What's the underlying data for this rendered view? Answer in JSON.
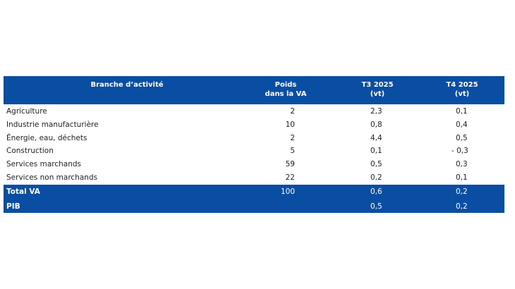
{
  "table": {
    "header": {
      "branch": "Branche d’activité",
      "weight": [
        "Poids",
        "dans la VA"
      ],
      "t3": [
        "T3 2025",
        "(vt)"
      ],
      "t4": [
        "T4 2025",
        "(vt)"
      ]
    },
    "rows": [
      {
        "label": "Agriculture",
        "weight": "2",
        "t3": "2,3",
        "t4": "0,1"
      },
      {
        "label": "Industrie manufacturière",
        "weight": "10",
        "t3": "0,8",
        "t4": "0,4"
      },
      {
        "label": "Énergie, eau, déchets",
        "weight": "2",
        "t3": "4,4",
        "t4": "0,5"
      },
      {
        "label": "Construction",
        "weight": "5",
        "t3": "0,1",
        "t4": "- 0,3"
      },
      {
        "label": "Services marchands",
        "weight": "59",
        "t3": "0,5",
        "t4": "0,3"
      },
      {
        "label": "Services non marchands",
        "weight": "22",
        "t3": "0,2",
        "t4": "0,1"
      }
    ],
    "totals": [
      {
        "label": "Total VA",
        "weight": "100",
        "t3": "0,6",
        "t4": "0,2"
      },
      {
        "label": "PIB",
        "t3": "0,5",
        "t4": "0,2"
      }
    ]
  }
}
